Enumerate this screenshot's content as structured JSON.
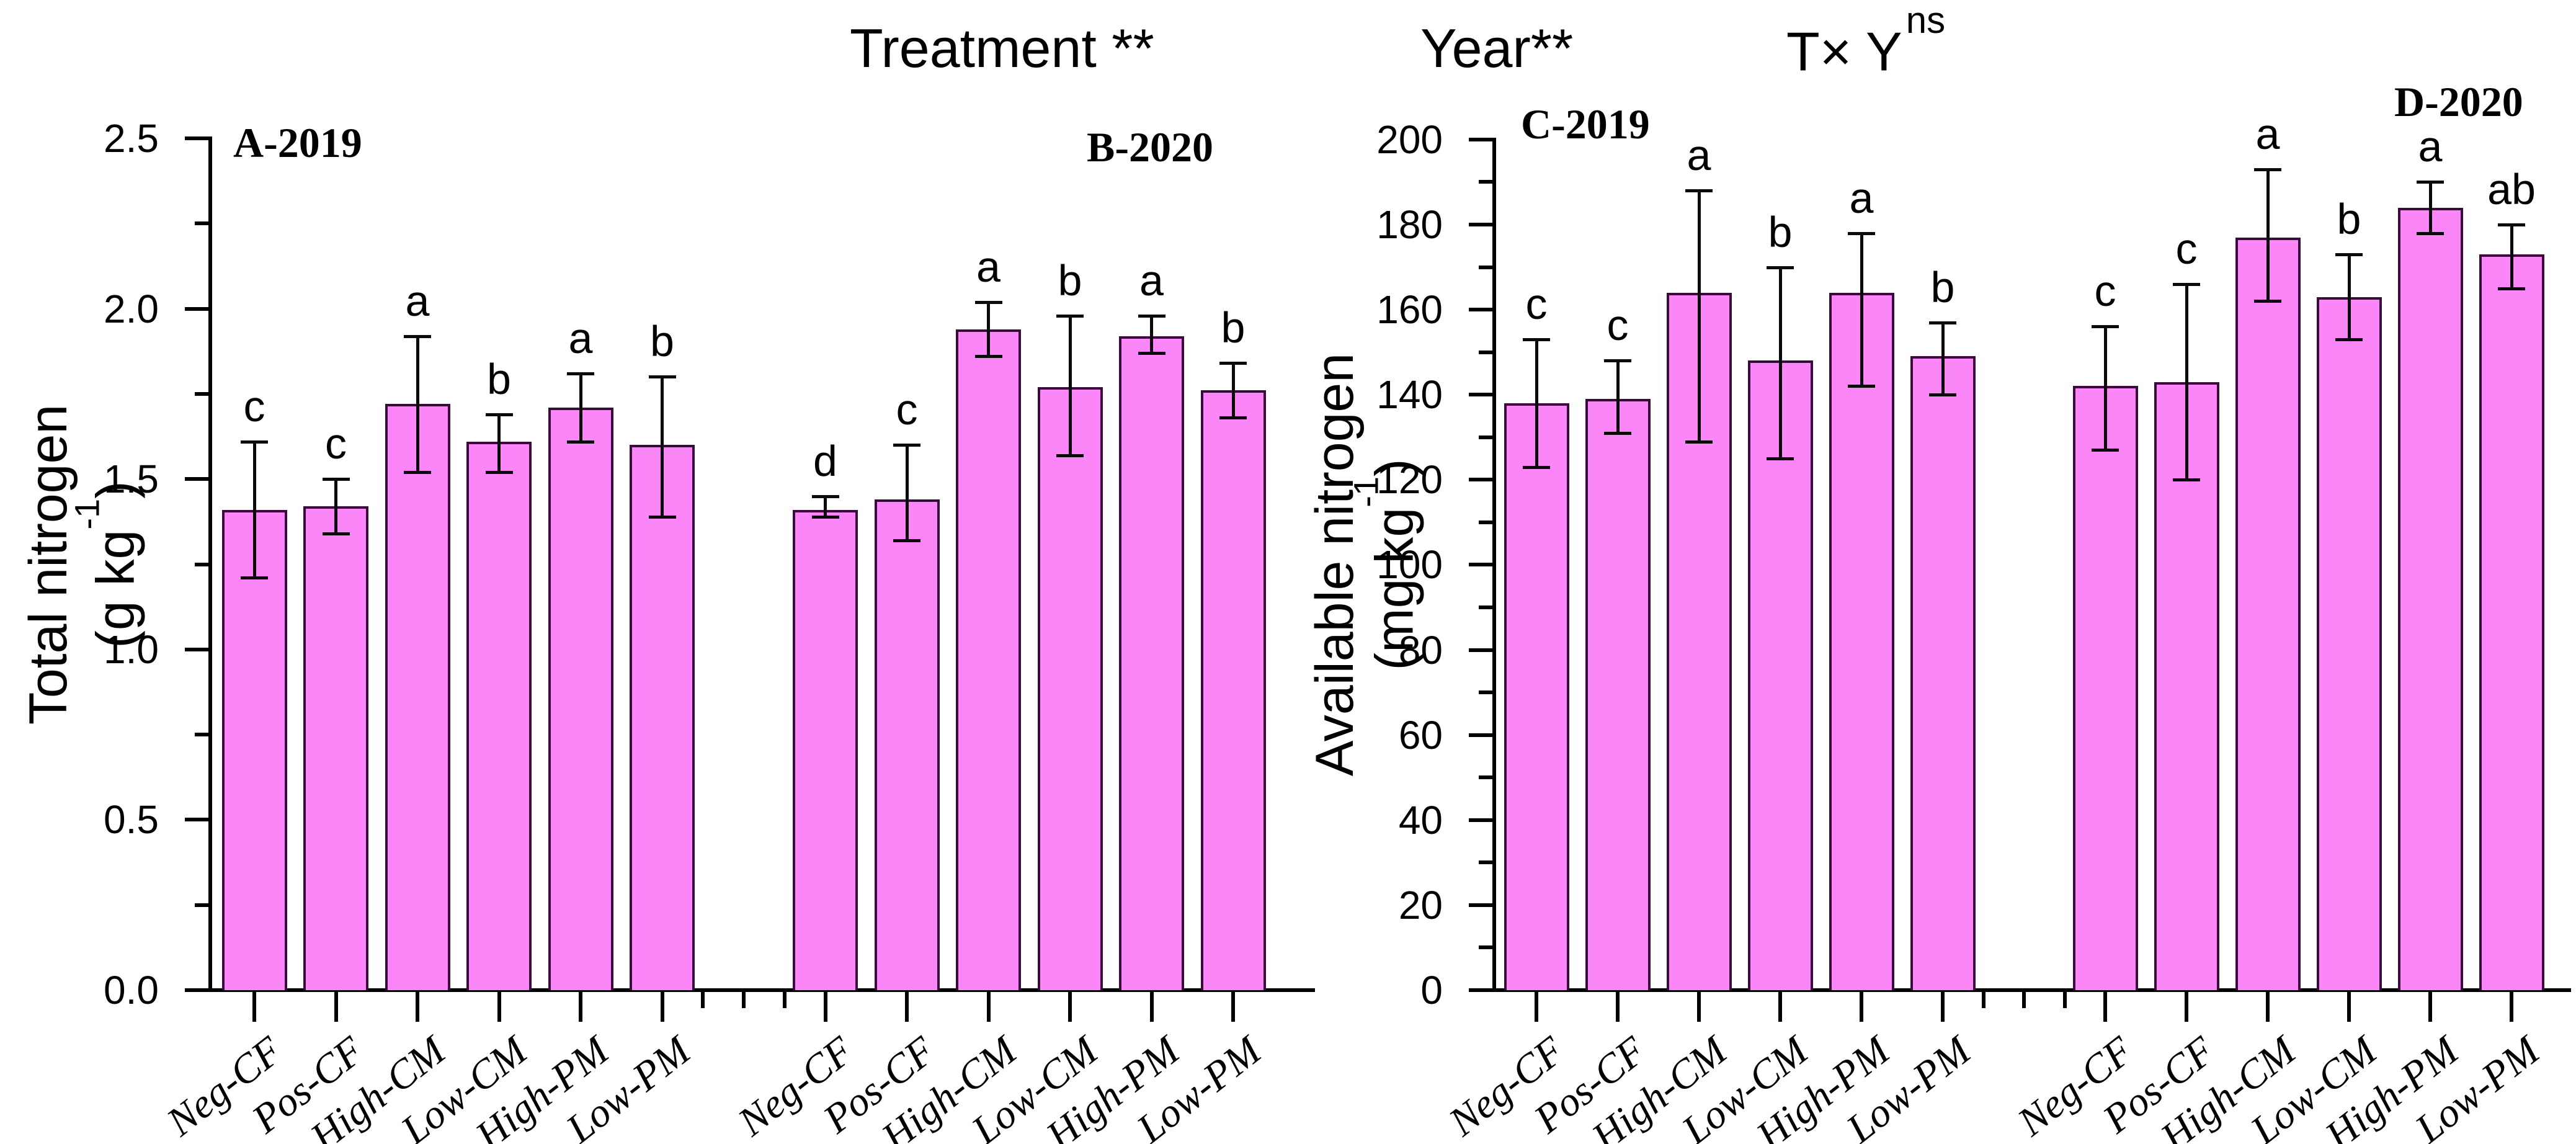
{
  "figure": {
    "anova": {
      "treatment": "Treatment **",
      "year": "Year**",
      "interaction_base": "T× Y",
      "interaction_sup": "ns"
    },
    "colors": {
      "bar_fill": "#fa86f7",
      "bar_border": "#3a0a3a",
      "error_bar": "#0a0a0a",
      "axis": "#000000",
      "text": "#000000"
    }
  },
  "chart_data": [
    {
      "type": "bar",
      "panel": "left",
      "ylabel_line1": "Total nitrogen",
      "ylabel_line2_pre": "(g kg",
      "ylabel_line2_sup": "-1",
      "ylabel_line2_post": ")",
      "ylim": [
        0,
        2.5
      ],
      "major_step": 0.5,
      "minor_step": 0.25,
      "ytick_labels": [
        "0.0",
        "0.5",
        "1.0",
        "1.5",
        "2.0",
        "2.5"
      ],
      "grid": false,
      "categories": [
        "Neg-CF",
        "Pos-CF",
        "High-CM",
        "Low-CM",
        "High-PM",
        "Low-PM"
      ],
      "groups": [
        {
          "label": "A-2019",
          "values": [
            1.41,
            1.42,
            1.72,
            1.61,
            1.71,
            1.6
          ],
          "err_low": [
            1.21,
            1.34,
            1.52,
            1.52,
            1.61,
            1.39
          ],
          "err_high": [
            1.61,
            1.5,
            1.92,
            1.69,
            1.81,
            1.8
          ],
          "letters": [
            "c",
            "c",
            "a",
            "b",
            "a",
            "b"
          ]
        },
        {
          "label": "B-2020",
          "values": [
            1.41,
            1.44,
            1.94,
            1.77,
            1.92,
            1.76
          ],
          "err_low": [
            1.39,
            1.32,
            1.86,
            1.57,
            1.87,
            1.68
          ],
          "err_high": [
            1.45,
            1.6,
            2.02,
            1.98,
            1.98,
            1.84
          ],
          "letters": [
            "d",
            "c",
            "a",
            "b",
            "a",
            "b"
          ]
        }
      ]
    },
    {
      "type": "bar",
      "panel": "right",
      "ylabel_line1": "Available nitrogen",
      "ylabel_line2_pre": "(mg kg",
      "ylabel_line2_sup": "-1",
      "ylabel_line2_post": ")",
      "ylim": [
        0,
        200
      ],
      "major_step": 20,
      "minor_step": 10,
      "ytick_labels": [
        "0",
        "20",
        "40",
        "60",
        "80",
        "100",
        "120",
        "140",
        "160",
        "180",
        "200"
      ],
      "grid": false,
      "categories": [
        "Neg-CF",
        "Pos-CF",
        "High-CM",
        "Low-CM",
        "High-PM",
        "Low-PM"
      ],
      "groups": [
        {
          "label": "C-2019",
          "values": [
            138,
            139,
            164,
            148,
            164,
            149
          ],
          "err_low": [
            123,
            131,
            129,
            125,
            142,
            140
          ],
          "err_high": [
            153,
            148,
            188,
            170,
            178,
            157
          ],
          "letters": [
            "c",
            "c",
            "a",
            "b",
            "a",
            "b"
          ]
        },
        {
          "label": "D-2020",
          "values": [
            142,
            143,
            177,
            163,
            184,
            173
          ],
          "err_low": [
            127,
            120,
            162,
            153,
            178,
            165
          ],
          "err_high": [
            156,
            166,
            193,
            173,
            190,
            180
          ],
          "letters": [
            "c",
            "c",
            "a",
            "b",
            "a",
            "ab"
          ]
        }
      ]
    }
  ]
}
